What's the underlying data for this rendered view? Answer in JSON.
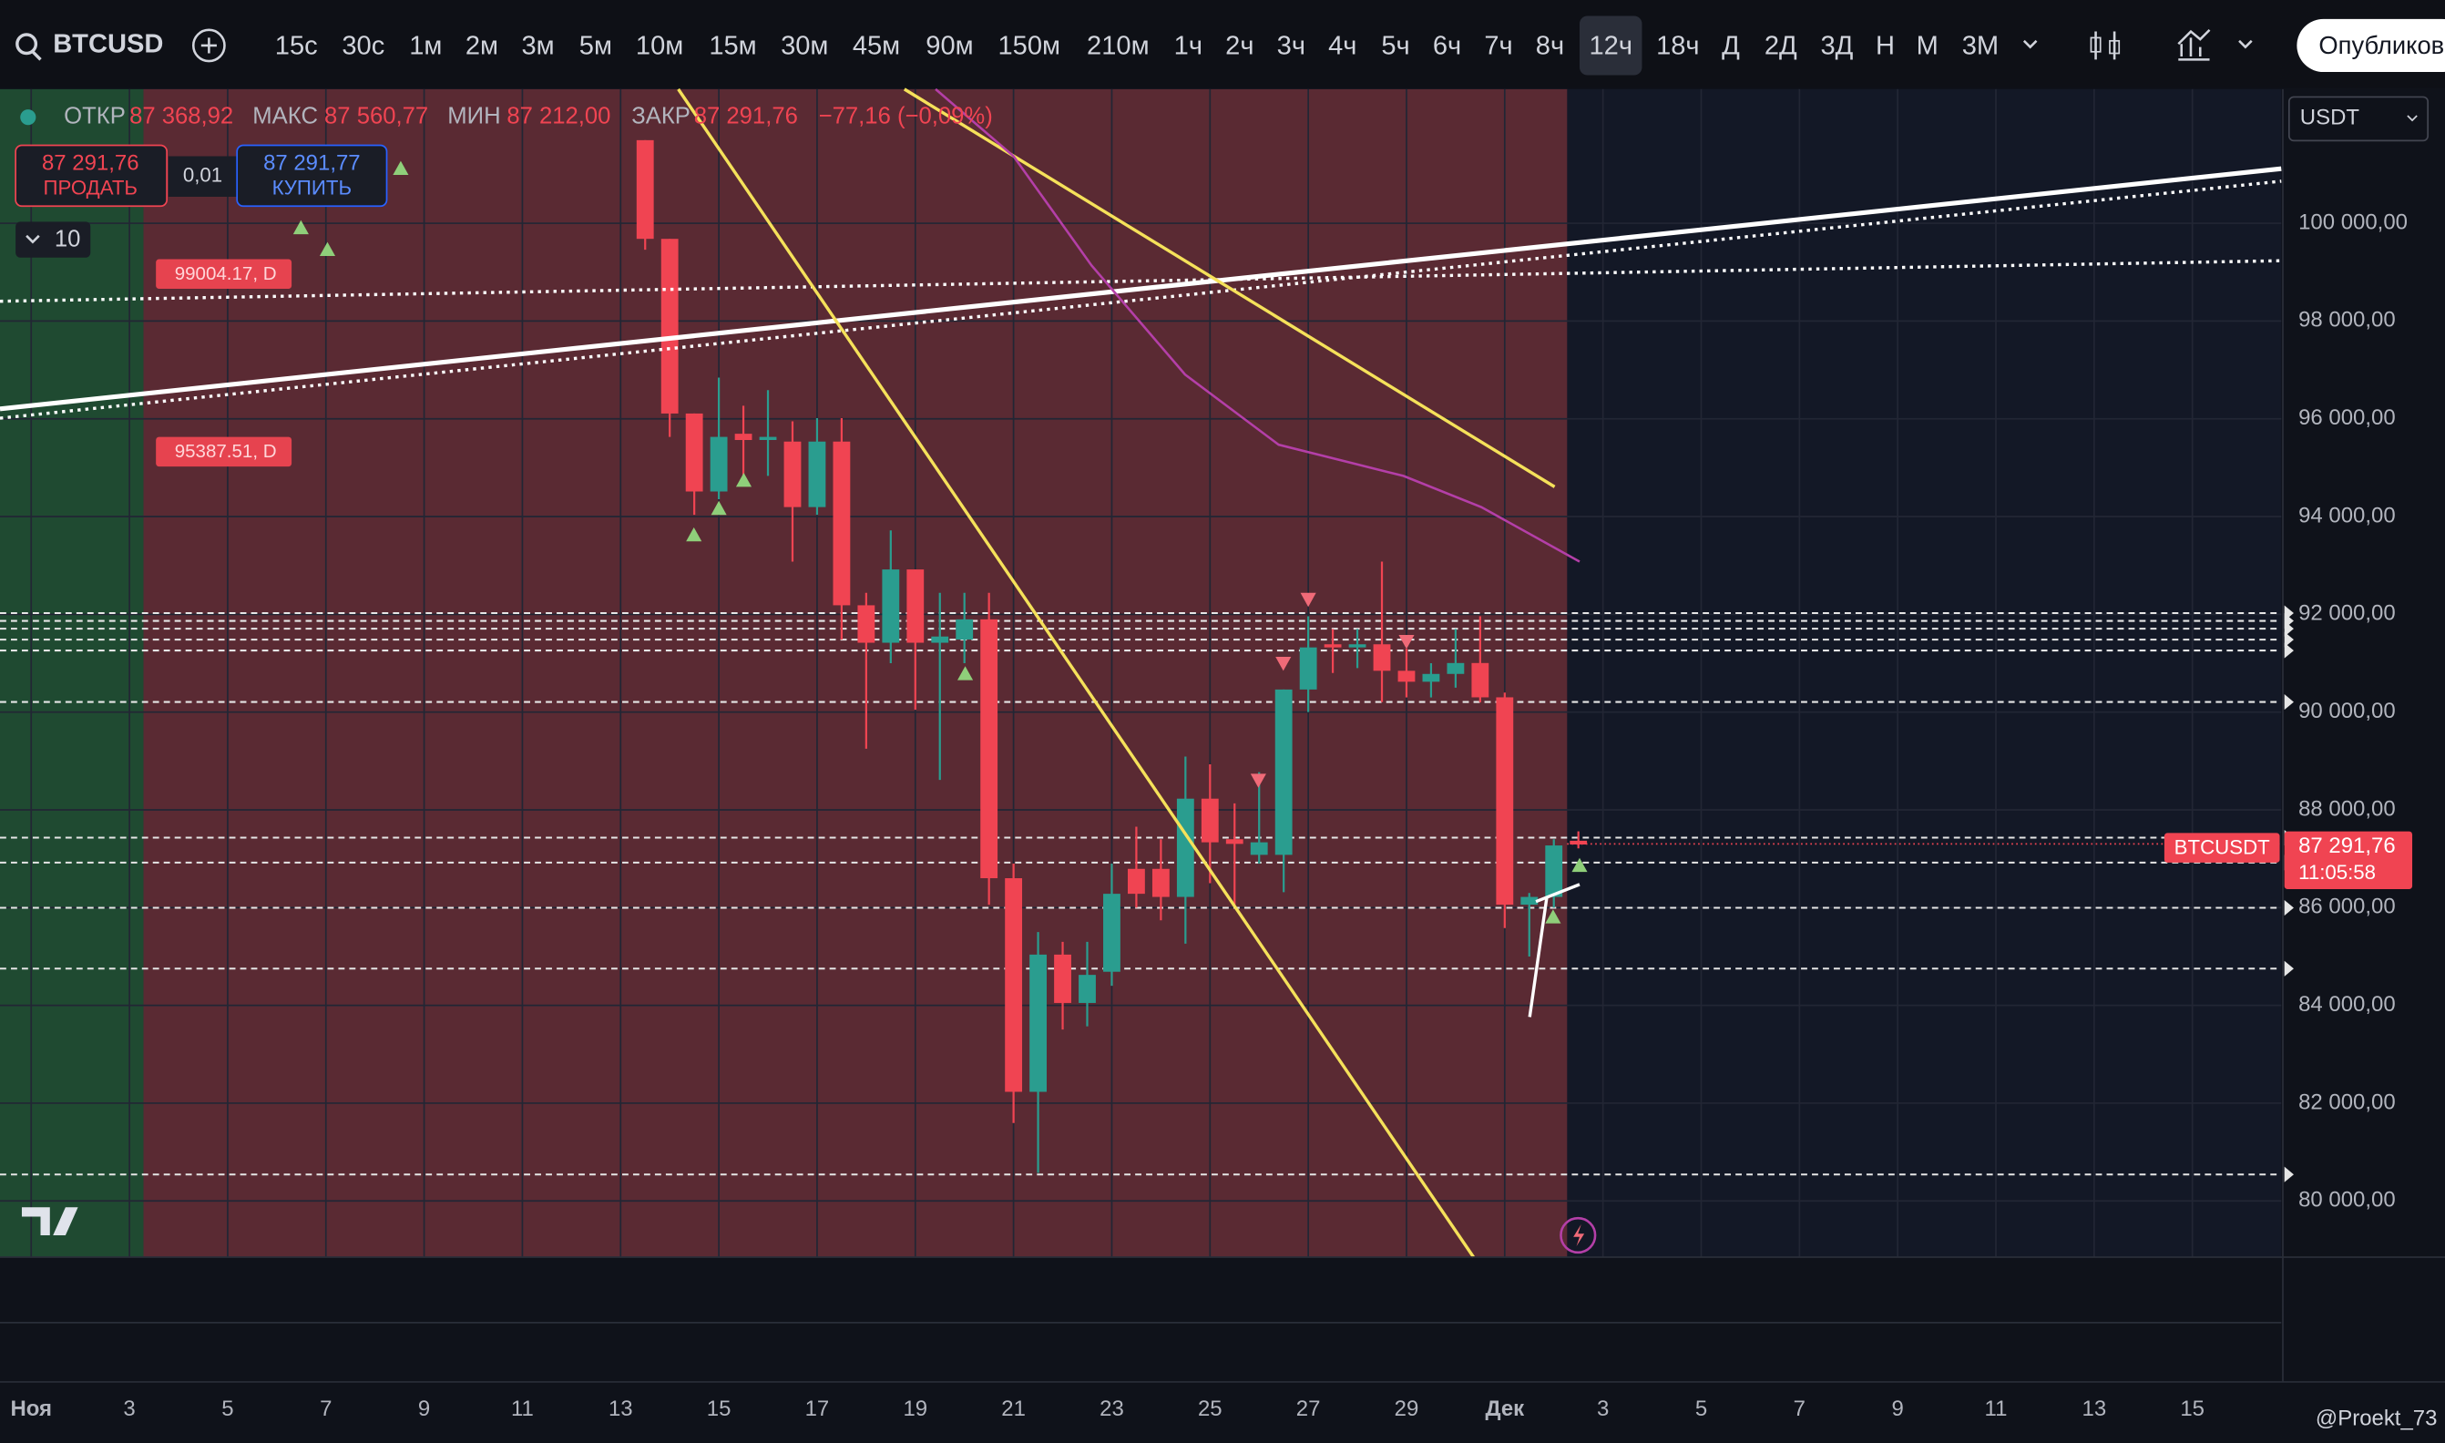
{
  "toolbar": {
    "symbol": "BTCUSD",
    "intervals": [
      "15с",
      "30с",
      "1м",
      "2м",
      "3м",
      "5м",
      "10м",
      "15м",
      "30м",
      "45м",
      "90м",
      "150м",
      "210м",
      "1ч",
      "2ч",
      "3ч",
      "4ч",
      "5ч",
      "6ч",
      "7ч",
      "8ч",
      "12ч",
      "18ч",
      "Д",
      "2Д",
      "3Д",
      "Н",
      "М",
      "3М"
    ],
    "publish": "Опубликовать"
  },
  "legend": {
    "open_label": "ОТКР",
    "open": "87 368,92",
    "high_label": "МАКС",
    "high": "87 560,77",
    "low_label": "МИН",
    "low": "87 212,00",
    "close_label": "ЗАКР",
    "close": "87 291,76",
    "change": "−77,16 (−0,09%)"
  },
  "trade": {
    "sell_price": "87 291,76",
    "sell": "ПРОДАТЬ",
    "spread": "0,01",
    "buy_price": "87 291,77",
    "buy": "КУПИТЬ",
    "indicators_count": "10"
  },
  "currency": "USDT",
  "tags": [
    "99004.17, D",
    "95387.51, D"
  ],
  "price_tag": {
    "symbol": "BTCUSDT",
    "price": "87 291,76",
    "countdown": "11:05:58"
  },
  "watermark": "@Proekt_73",
  "chart_data": {
    "type": "candlestick",
    "up_color": "#2a9d8f",
    "down_color": "#f04452",
    "x": [
      13.5,
      14,
      14.5,
      15,
      15.5,
      16,
      16.5,
      17,
      17.5,
      18,
      18.5,
      19,
      19.5,
      20,
      20.5,
      21,
      21.5,
      22,
      22.5,
      23,
      23.5,
      24,
      24.5,
      25,
      25.5,
      26,
      26.5,
      27,
      27.5,
      28,
      28.5,
      29,
      29.5,
      30,
      30.5,
      31,
      31.5,
      32,
      32.5
    ],
    "open": [
      101700,
      99681,
      96108,
      94513,
      95694,
      95566,
      95534,
      94194,
      95534,
      92185,
      91419,
      92918,
      91419,
      91483,
      91897,
      86602,
      82232,
      85039,
      84050,
      84688,
      86793,
      86793,
      86219,
      88229,
      87399,
      87080,
      87080,
      90462,
      91387,
      91323,
      91387,
      90845,
      90621,
      90781,
      91004,
      90302,
      86060,
      86219,
      87368.92
    ],
    "high": [
      101700,
      99681,
      96108,
      96842,
      96268,
      96587,
      95949,
      96013,
      96013,
      92440,
      93716,
      92918,
      92440,
      92440,
      92440,
      86900,
      85500,
      85300,
      85300,
      86900,
      87655,
      87400,
      89090,
      88931,
      88133,
      88771,
      90462,
      91961,
      91700,
      91700,
      93078,
      91300,
      91000,
      91700,
      91961,
      90400,
      86300,
      87399,
      87560.77
    ],
    "low": [
      99458,
      95630,
      94035,
      94354,
      94673,
      94832,
      93078,
      94035,
      91483,
      89250,
      91000,
      90047,
      88612,
      91000,
      86060,
      81594,
      80573,
      83507,
      83571,
      84400,
      86000,
      85741,
      85262,
      86500,
      86060,
      86900,
      86315,
      90000,
      90800,
      90900,
      90207,
      90300,
      90300,
      90500,
      90200,
      85581,
      85000,
      86000,
      87212.0
    ],
    "close": [
      99681,
      96108,
      94513,
      95630,
      95566,
      95630,
      94194,
      95534,
      92185,
      91419,
      92918,
      91419,
      91546,
      91897,
      86602,
      82232,
      85039,
      84050,
      84624,
      86283,
      86283,
      86219,
      88229,
      87336,
      87304,
      87336,
      90462,
      91323,
      91323,
      91387,
      90845,
      90621,
      90781,
      91004,
      90302,
      86060,
      86219,
      87272,
      87291.76
    ],
    "levels": [
      92025,
      91866,
      91706,
      91483,
      91260,
      90207,
      87431,
      86921,
      85996,
      84752,
      80541
    ],
    "ylim": [
      78850,
      102743
    ],
    "yticks": [
      {
        "value": 100000,
        "label": "100 000,00"
      },
      {
        "value": 98000,
        "label": "98 000,00"
      },
      {
        "value": 96000,
        "label": "96 000,00"
      },
      {
        "value": 94000,
        "label": "94 000,00"
      },
      {
        "value": 92000,
        "label": "92 000,00"
      },
      {
        "value": 90000,
        "label": "90 000,00"
      },
      {
        "value": 88000,
        "label": "88 000,00"
      },
      {
        "value": 86000,
        "label": "86 000,00"
      },
      {
        "value": 84000,
        "label": "84 000,00"
      },
      {
        "value": 82000,
        "label": "82 000,00"
      },
      {
        "value": 80000,
        "label": "80 000,00"
      }
    ],
    "xlim": [
      0.365,
      46.81
    ],
    "xticks": [
      {
        "value": 1,
        "label": "Ноя"
      },
      3,
      5,
      7,
      9,
      11,
      13,
      15,
      17,
      19,
      21,
      23,
      25,
      27,
      29,
      {
        "value": 31,
        "label": "Дек"
      },
      {
        "value": 33,
        "label": "3"
      },
      {
        "value": 35,
        "label": "5"
      },
      {
        "value": 37,
        "label": "7"
      },
      {
        "value": 39,
        "label": "9"
      },
      {
        "value": 41,
        "label": "11"
      },
      {
        "value": 43,
        "label": "13"
      },
      {
        "value": 45,
        "label": "15"
      }
    ],
    "grid": true
  }
}
